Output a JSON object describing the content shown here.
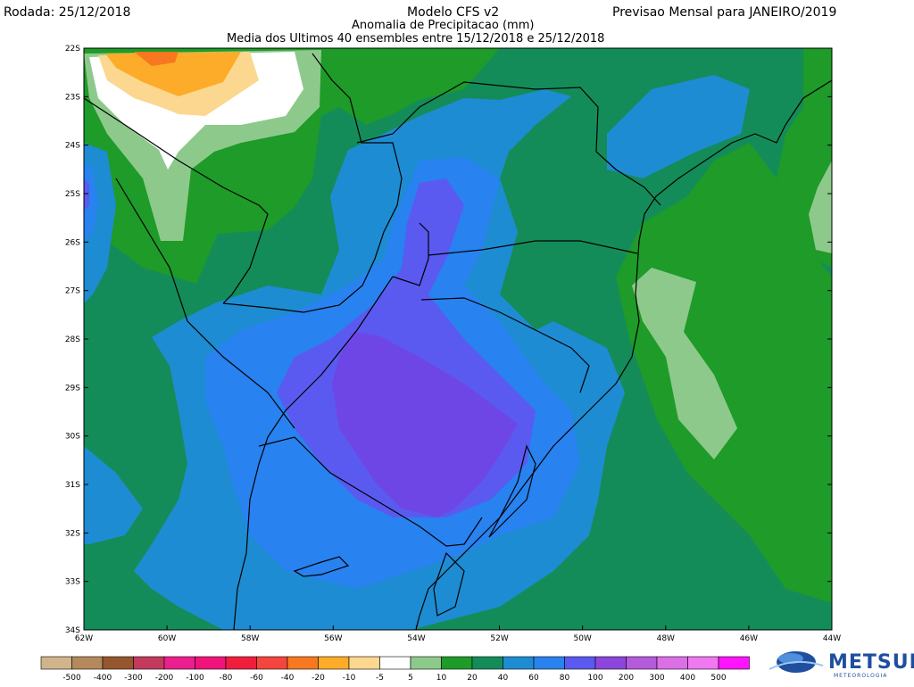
{
  "header": {
    "run_date": "Rodada: 25/12/2018",
    "model": "Modelo CFS v2",
    "forecast": "Previsao Mensal para JANEIRO/2019",
    "variable": "Anomalia de Precipitacao (mm)",
    "ensemble": "Media dos Ultimos 40 ensembles entre 15/12/2018 e 25/12/2018"
  },
  "map": {
    "lat_labels": [
      "22S",
      "23S",
      "24S",
      "25S",
      "26S",
      "27S",
      "28S",
      "29S",
      "30S",
      "31S",
      "32S",
      "33S",
      "34S"
    ],
    "lon_labels": [
      "62W",
      "60W",
      "58W",
      "56W",
      "54W",
      "52W",
      "50W",
      "48W",
      "46W",
      "44W"
    ],
    "lat_range": [
      -34,
      -22
    ],
    "lon_range": [
      -62,
      -44
    ]
  },
  "legend": {
    "labels": [
      "-500",
      "-400",
      "-300",
      "-200",
      "-100",
      "-80",
      "-60",
      "-40",
      "-20",
      "-10",
      "-5",
      "5",
      "10",
      "20",
      "40",
      "60",
      "80",
      "100",
      "200",
      "300",
      "400",
      "500"
    ],
    "colors": [
      "#d1b48c",
      "#b48a5c",
      "#96572f",
      "#c33a5d",
      "#ec1f8f",
      "#f0147a",
      "#f01e3c",
      "#f4463c",
      "#f7781e",
      "#fcac28",
      "#fcd78f",
      "#ffffff",
      "#8ec98c",
      "#1e9b28",
      "#148c5a",
      "#1e8cd2",
      "#2882f0",
      "#5a5af0",
      "#8c46dc",
      "#b45adc",
      "#dc6ee6",
      "#f078f0",
      "#ff14ff"
    ]
  },
  "logo": {
    "name": "METSUL",
    "tagline": "METEOROLOGIA"
  }
}
